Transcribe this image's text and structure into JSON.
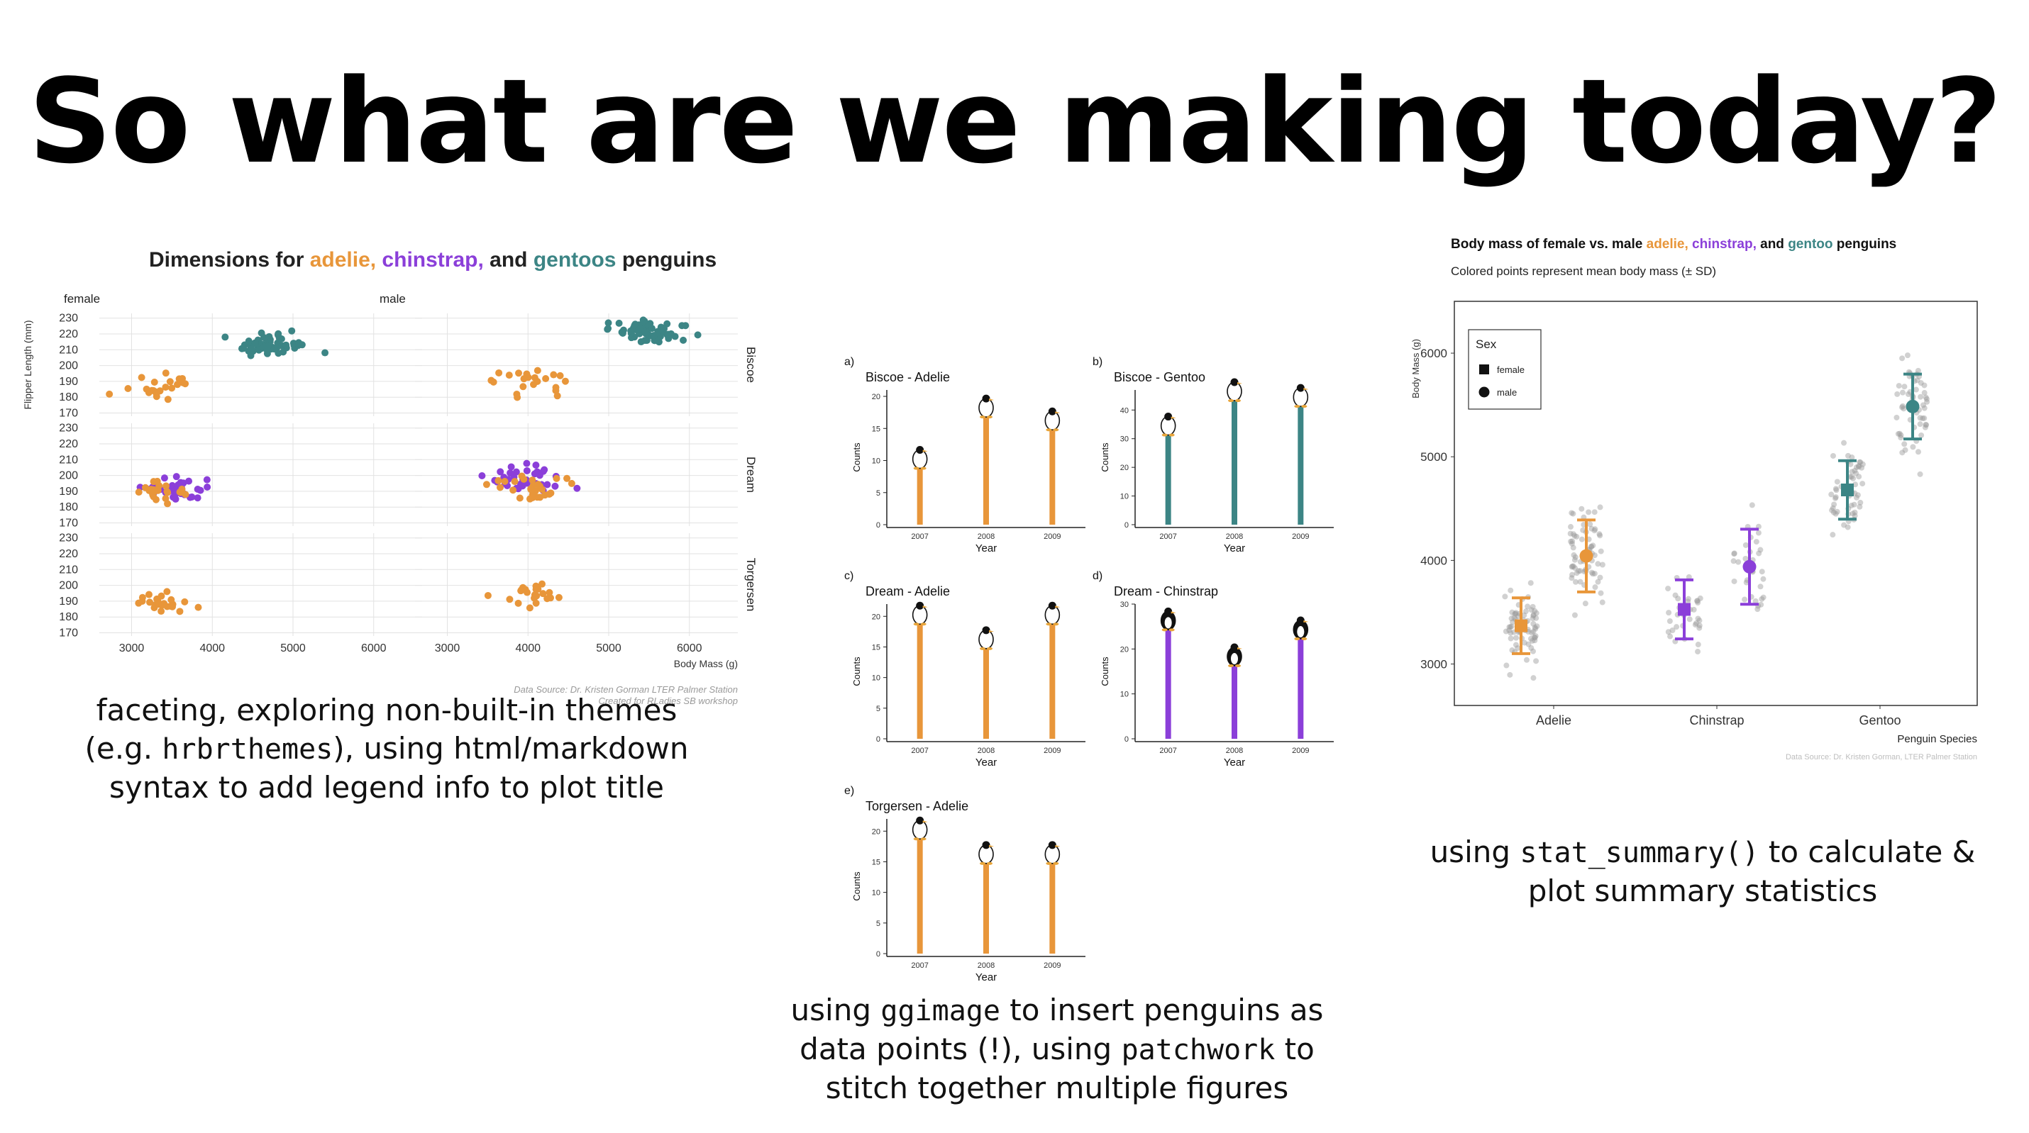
{
  "slide": {
    "title": "So what are we making today?"
  },
  "captions": {
    "left": {
      "line1": "faceting, exploring non-built-in themes",
      "line2_pre": "(e.g. ",
      "line2_code": "hrbrthemes",
      "line2_post": "), using html/markdown",
      "line3": "syntax to add legend info to plot title"
    },
    "middle": {
      "line1_pre": "using ",
      "line1_code": "ggimage",
      "line1_post": " to insert penguins as",
      "line2_pre": "data points (!), using ",
      "line2_code": "patchwork",
      "line2_post": " to",
      "line3": "stitch together multiple figures"
    },
    "right": {
      "line1_pre": "using ",
      "line1_code": "stat_summary()",
      "line1_post": " to calculate &",
      "line2": "plot summary statistics"
    }
  },
  "colors": {
    "adelie": "#E8963A",
    "chinstrap": "#8B3FD9",
    "gentoo": "#3C8585"
  },
  "chart_data": [
    {
      "type": "scatter",
      "title_parts": [
        {
          "text": "Dimensions for ",
          "color": "#222222"
        },
        {
          "text": "adelie,",
          "color": "#E8963A"
        },
        {
          "text": "  chinstrap,",
          "color": "#8B3FD9"
        },
        {
          "text": " and ",
          "color": "#222222"
        },
        {
          "text": "gentoos",
          "color": "#3C8585"
        },
        {
          "text": " penguins",
          "color": "#222222"
        }
      ],
      "xlabel": "Body Mass (g)",
      "ylabel": "Flipper Length (mm)",
      "xlim": [
        2600,
        6600
      ],
      "ylim": [
        168,
        233
      ],
      "x_ticks": [
        3000,
        4000,
        5000,
        6000
      ],
      "y_ticks": [
        170,
        180,
        190,
        200,
        210,
        220,
        230
      ],
      "columns": [
        "female",
        "male"
      ],
      "rows": [
        "Biscoe",
        "Dream",
        "Torgersen"
      ],
      "source_line1": "Data Source: Dr. Kristen Gorman LTER Palmer Station",
      "source_line2": "Created for RLadies SB workshop",
      "clusters": [
        {
          "sex": "female",
          "island": "Biscoe",
          "species": "gentoo",
          "n": 58,
          "x_mean": 4700,
          "x_sd": 320,
          "y_mean": 213,
          "y_sd": 4
        },
        {
          "sex": "female",
          "island": "Biscoe",
          "species": "adelie",
          "n": 22,
          "x_mean": 3350,
          "x_sd": 280,
          "y_mean": 186,
          "y_sd": 6
        },
        {
          "sex": "male",
          "island": "Biscoe",
          "species": "gentoo",
          "n": 61,
          "x_mean": 5500,
          "x_sd": 340,
          "y_mean": 221,
          "y_sd": 5
        },
        {
          "sex": "male",
          "island": "Biscoe",
          "species": "adelie",
          "n": 22,
          "x_mean": 4050,
          "x_sd": 330,
          "y_mean": 190,
          "y_sd": 6
        },
        {
          "sex": "female",
          "island": "Dream",
          "species": "chinstrap",
          "n": 34,
          "x_mean": 3530,
          "x_sd": 290,
          "y_mean": 192,
          "y_sd": 5
        },
        {
          "sex": "female",
          "island": "Dream",
          "species": "adelie",
          "n": 27,
          "x_mean": 3340,
          "x_sd": 260,
          "y_mean": 188,
          "y_sd": 5
        },
        {
          "sex": "male",
          "island": "Dream",
          "species": "chinstrap",
          "n": 34,
          "x_mean": 3940,
          "x_sd": 360,
          "y_mean": 199,
          "y_sd": 6
        },
        {
          "sex": "male",
          "island": "Dream",
          "species": "adelie",
          "n": 28,
          "x_mean": 4050,
          "x_sd": 340,
          "y_mean": 192,
          "y_sd": 6
        },
        {
          "sex": "female",
          "island": "Torgersen",
          "species": "adelie",
          "n": 24,
          "x_mean": 3400,
          "x_sd": 260,
          "y_mean": 189,
          "y_sd": 4
        },
        {
          "sex": "male",
          "island": "Torgersen",
          "species": "adelie",
          "n": 23,
          "x_mean": 4030,
          "x_sd": 330,
          "y_mean": 195,
          "y_sd": 5
        }
      ]
    },
    {
      "type": "bar",
      "xlabel": "Year",
      "ylabel": "Counts",
      "categories": [
        "2007",
        "2008",
        "2009"
      ],
      "panels": [
        {
          "tag": "a)",
          "title": "Biscoe - Adelie",
          "species": "adelie",
          "values": [
            10,
            18,
            16
          ],
          "ylim": [
            0,
            21
          ],
          "y_ticks": [
            0,
            5,
            10,
            15,
            20
          ]
        },
        {
          "tag": "b)",
          "title": "Biscoe - Gentoo",
          "species": "gentoo",
          "values": [
            34,
            46,
            44
          ],
          "ylim": [
            0,
            47
          ],
          "y_ticks": [
            0,
            10,
            20,
            30,
            40
          ]
        },
        {
          "tag": "c)",
          "title": "Dream - Adelie",
          "species": "adelie",
          "values": [
            20,
            16,
            20
          ],
          "ylim": [
            0,
            22
          ],
          "y_ticks": [
            0,
            5,
            10,
            15,
            20
          ]
        },
        {
          "tag": "d)",
          "title": "Dream - Chinstrap",
          "species": "chinstrap",
          "values": [
            26,
            18,
            24
          ],
          "ylim": [
            0,
            30
          ],
          "y_ticks": [
            0,
            10,
            20,
            30
          ]
        },
        {
          "tag": "e)",
          "title": "Torgersen - Adelie",
          "species": "adelie",
          "values": [
            20,
            16,
            16
          ],
          "ylim": [
            0,
            22
          ],
          "y_ticks": [
            0,
            5,
            10,
            15,
            20
          ]
        }
      ]
    },
    {
      "type": "scatter",
      "title_parts": [
        {
          "text": "Body mass of female vs. male ",
          "color": "#111111"
        },
        {
          "text": "adelie,",
          "color": "#E8963A"
        },
        {
          "text": "  chinstrap,",
          "color": "#8B3FD9"
        },
        {
          "text": " and ",
          "color": "#111111"
        },
        {
          "text": "gentoo",
          "color": "#3C8585"
        },
        {
          "text": " penguins",
          "color": "#111111"
        }
      ],
      "subtitle": "Colored points represent mean body mass (± SD)",
      "xlabel": "Penguin Species",
      "ylabel": "Body Mass (g)",
      "categories": [
        "Adelie",
        "Chinstrap",
        "Gentoo"
      ],
      "ylim": [
        2600,
        6500
      ],
      "y_ticks": [
        3000,
        4000,
        5000,
        6000
      ],
      "legend": {
        "title": "Sex",
        "items": [
          "female",
          "male"
        ],
        "position": "top-left"
      },
      "source": "Data Source: Dr. Kristen Gorman, LTER Palmer Station",
      "summaries": [
        {
          "species": "Adelie",
          "sex": "female",
          "mean": 3369,
          "sd": 269,
          "n": 73
        },
        {
          "species": "Adelie",
          "sex": "male",
          "mean": 4043,
          "sd": 347,
          "n": 73
        },
        {
          "species": "Chinstrap",
          "sex": "female",
          "mean": 3527,
          "sd": 285,
          "n": 34
        },
        {
          "species": "Chinstrap",
          "sex": "male",
          "mean": 3939,
          "sd": 362,
          "n": 34
        },
        {
          "species": "Gentoo",
          "sex": "female",
          "mean": 4680,
          "sd": 282,
          "n": 58
        },
        {
          "species": "Gentoo",
          "sex": "male",
          "mean": 5485,
          "sd": 313,
          "n": 61
        }
      ]
    }
  ]
}
